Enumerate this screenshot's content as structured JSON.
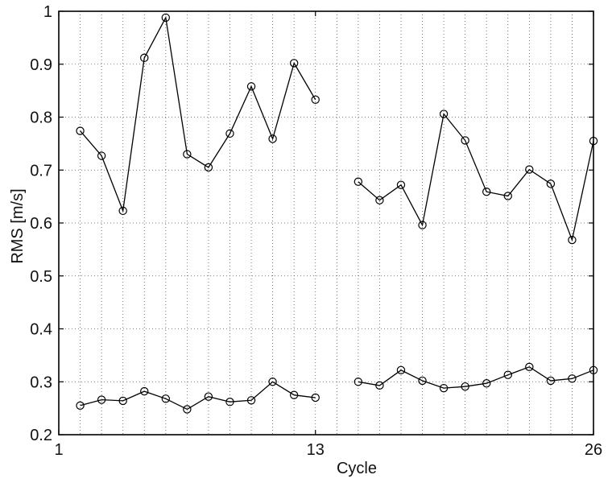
{
  "chart_data": {
    "type": "line",
    "title": "",
    "xlabel": "Cycle",
    "ylabel": "RMS [m/s]",
    "xlim": [
      1,
      26
    ],
    "ylim": [
      0.2,
      1.0
    ],
    "grid": true,
    "xticks": [
      1,
      13,
      26
    ],
    "xtick_labels": [
      "1",
      "13",
      "26"
    ],
    "yticks": [
      0.2,
      0.3,
      0.4,
      0.5,
      0.6,
      0.7,
      0.8,
      0.9,
      1.0
    ],
    "ytick_labels": [
      "0.2",
      "0.3",
      "0.4",
      "0.5",
      "0.6",
      "0.7",
      "0.8",
      "0.9",
      "1"
    ],
    "marker": "circle",
    "line_color": "#000000",
    "series": [
      {
        "x": [
          2,
          3,
          4,
          5,
          6,
          7,
          8,
          9,
          10,
          11,
          12,
          13
        ],
        "values": [
          0.774,
          0.727,
          0.623,
          0.912,
          0.988,
          0.73,
          0.705,
          0.769,
          0.858,
          0.759,
          0.902,
          0.833
        ]
      },
      {
        "x": [
          15,
          16,
          17,
          18,
          19,
          20,
          21,
          22,
          23,
          24,
          25,
          26
        ],
        "values": [
          0.678,
          0.643,
          0.672,
          0.596,
          0.806,
          0.756,
          0.659,
          0.651,
          0.701,
          0.674,
          0.568,
          0.755
        ]
      },
      {
        "x": [
          2,
          3,
          4,
          5,
          6,
          7,
          8,
          9,
          10,
          11,
          12,
          13
        ],
        "values": [
          0.255,
          0.266,
          0.264,
          0.282,
          0.268,
          0.248,
          0.272,
          0.262,
          0.265,
          0.3,
          0.275,
          0.27
        ]
      },
      {
        "x": [
          15,
          16,
          17,
          18,
          19,
          20,
          21,
          22,
          23,
          24,
          25,
          26
        ],
        "values": [
          0.3,
          0.293,
          0.322,
          0.302,
          0.288,
          0.291,
          0.297,
          0.313,
          0.328,
          0.302,
          0.306,
          0.322
        ]
      }
    ]
  }
}
